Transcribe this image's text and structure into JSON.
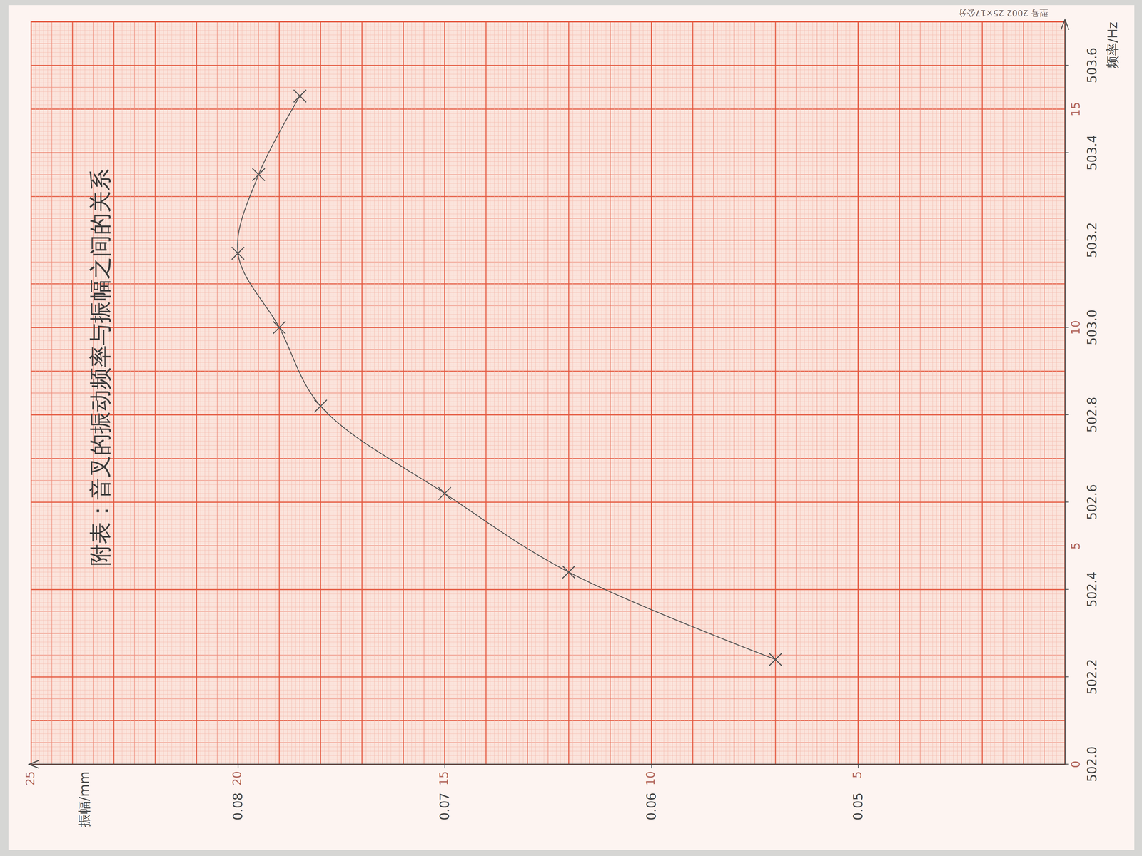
{
  "chart_data": {
    "type": "line",
    "title": "附表：音叉的振动频率与振幅之间的关系",
    "x_label": "频率/Hz",
    "y_label": "振幅/mm",
    "x": [
      502.24,
      502.44,
      502.62,
      502.82,
      503.0,
      503.17,
      503.35,
      503.53
    ],
    "values": [
      0.054,
      0.064,
      0.07,
      0.076,
      0.078,
      0.08,
      0.079,
      0.077
    ],
    "color": "#555555",
    "marker": "x",
    "line_style": "solid",
    "xlim": [
      502.0,
      503.7
    ],
    "xticks": [
      {
        "value": 502.0,
        "label": "502.0"
      },
      502.2,
      502.4,
      502.6,
      502.8,
      {
        "value": 503.0,
        "label": "503.0"
      },
      503.2,
      503.4,
      503.6
    ],
    "ylim": [
      0.04,
      0.09
    ],
    "yticks": [
      0.05,
      0.06,
      0.07,
      0.08
    ],
    "grid": true,
    "annotations": [
      {
        "text": "0",
        "x": 502.0,
        "y": 0.04
      },
      {
        "text": "5",
        "x": 502.5,
        "y": 0.04
      },
      {
        "text": "10",
        "x": 503.0,
        "y": 0.04
      },
      {
        "text": "15",
        "x": 503.5,
        "y": 0.04
      },
      {
        "text": "5",
        "x": 502.0,
        "y": 0.05
      },
      {
        "text": "10",
        "x": 502.0,
        "y": 0.06
      },
      {
        "text": "15",
        "x": 502.0,
        "y": 0.07
      },
      {
        "text": "20",
        "x": 502.0,
        "y": 0.08
      },
      {
        "text": "25",
        "x": 502.0,
        "y": 0.09
      },
      {
        "text": "型号 2002  25×17公分"
      }
    ]
  }
}
